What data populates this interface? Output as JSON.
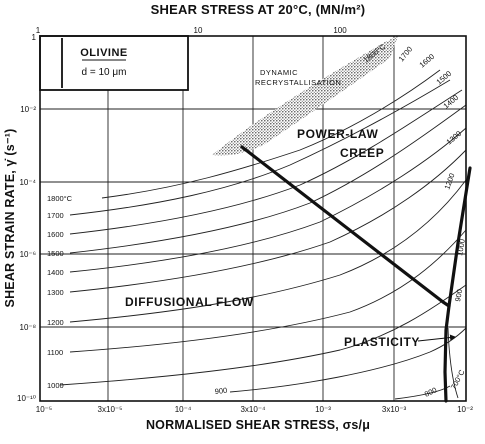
{
  "title_top": "SHEAR STRESS AT 20°C, (MN/m²)",
  "xlabel": "NORMALISED SHEAR STRESS, σs/μ",
  "ylabel": "SHEAR STRAIN RATE, γ̇ (s⁻¹)",
  "legend": {
    "material": "OLIVINE",
    "grain_size": "d = 10 μm"
  },
  "top_ticks": [
    "1",
    "10",
    "100"
  ],
  "x_ticks": [
    "10⁻⁵",
    "3x10⁻⁵",
    "10⁻⁴",
    "3x10⁻⁴",
    "10⁻³",
    "3x10⁻³",
    "10⁻²"
  ],
  "y_ticks": [
    "1",
    "10⁻²",
    "10⁻⁴",
    "10⁻⁶",
    "10⁻⁸",
    "10⁻¹⁰"
  ],
  "regions": {
    "power_law_1": "POWER-LAW",
    "power_law_2": "CREEP",
    "diffusional": "DIFFUSIONAL FLOW",
    "plasticity": "PLASTICITY",
    "drx_1": "DYNAMIC",
    "drx_2": "RECRYSTALLISATION"
  },
  "left_contour_labels": [
    "1800°C",
    "1700",
    "1600",
    "1500",
    "1400",
    "1300",
    "1200",
    "1100",
    "1000"
  ],
  "top_right_labels": [
    "1800°C",
    "1700",
    "1600",
    "1500",
    "1400",
    "1300",
    "1200"
  ],
  "right_labels": [
    "1000",
    "900",
    "800",
    "700°C"
  ],
  "bottom_label": "900",
  "chart_data": {
    "type": "deformation-mechanism-map",
    "x_axis": {
      "label": "NORMALISED SHEAR STRESS, σs/μ",
      "scale": "log",
      "range": [
        1e-05,
        0.01
      ]
    },
    "x2_axis": {
      "label": "SHEAR STRESS AT 20°C, (MN/m²)",
      "scale": "log",
      "ticks": [
        1,
        10,
        100
      ]
    },
    "y_axis": {
      "label": "SHEAR STRAIN RATE, γ̇ (s⁻¹)",
      "scale": "log",
      "range": [
        1e-10,
        1
      ]
    },
    "grid": true,
    "fields": [
      "POWER-LAW CREEP",
      "DIFFUSIONAL FLOW",
      "PLASTICITY",
      "DYNAMIC RECRYSTALLISATION"
    ],
    "isotherms_C": [
      1800,
      1700,
      1600,
      1500,
      1400,
      1300,
      1200,
      1100,
      1000,
      900,
      800,
      700
    ]
  }
}
